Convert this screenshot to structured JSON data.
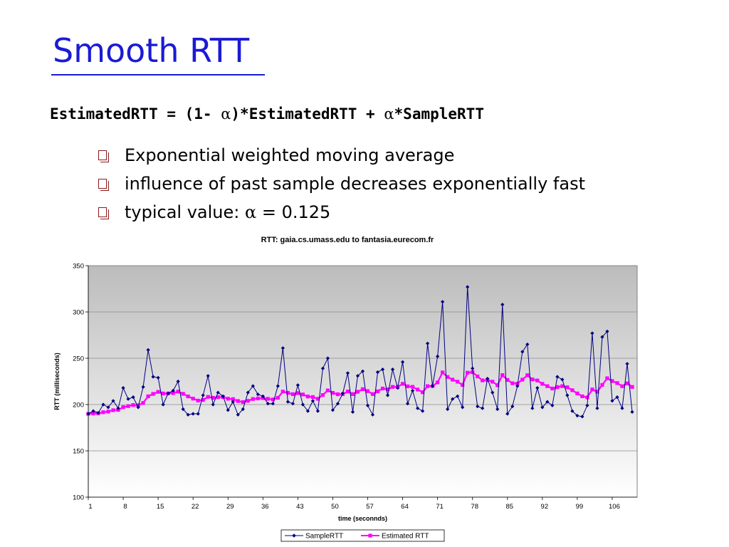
{
  "slide": {
    "title": "Smooth RTT",
    "formula_part1": "EstimatedRTT = (1- ",
    "formula_alpha1": "α",
    "formula_part2": ")*EstimatedRTT + ",
    "formula_alpha2": "α",
    "formula_part3": "*SampleRTT",
    "bullets": [
      "Exponential weighted moving average",
      "influence of past sample decreases exponentially fast"
    ],
    "bullet3_prefix": "typical value: ",
    "bullet3_alpha": "α",
    "bullet3_suffix": " = 0.125",
    "colors": {
      "title": "#1a1ad6",
      "bullet": "#8b1a1a"
    }
  },
  "chart_data": {
    "type": "line",
    "title": "RTT: gaia.cs.umass.edu to fantasia.eurecom.fr",
    "xlabel": "time (seconnds)",
    "ylabel": "RTT (milliseconds)",
    "ylim": [
      100,
      350
    ],
    "yticks": [
      100,
      150,
      200,
      250,
      300,
      350
    ],
    "xticks": [
      1,
      8,
      15,
      22,
      29,
      36,
      43,
      50,
      57,
      64,
      71,
      78,
      85,
      92,
      99,
      106
    ],
    "x_range": [
      1,
      111
    ],
    "grid": true,
    "legend_position": "bottom",
    "series": [
      {
        "name": "SampleRTT",
        "color": "#000080",
        "marker": "diamond",
        "values": [
          190,
          193,
          191,
          200,
          197,
          204,
          196,
          218,
          206,
          208,
          197,
          219,
          259,
          230,
          229,
          200,
          212,
          215,
          225,
          195,
          189,
          190,
          190,
          210,
          231,
          200,
          213,
          209,
          194,
          203,
          189,
          195,
          213,
          220,
          211,
          209,
          201,
          201,
          220,
          261,
          203,
          201,
          221,
          200,
          193,
          204,
          193,
          239,
          250,
          194,
          201,
          212,
          234,
          192,
          231,
          236,
          199,
          189,
          235,
          238,
          210,
          238,
          218,
          246,
          201,
          215,
          196,
          193,
          266,
          220,
          252,
          311,
          195,
          206,
          209,
          197,
          327,
          239,
          198,
          196,
          228,
          213,
          195,
          308,
          190,
          198,
          220,
          257,
          265,
          196,
          218,
          197,
          203,
          199,
          230,
          227,
          210,
          193,
          188,
          187,
          199,
          277,
          196,
          273,
          279,
          204,
          208,
          196,
          244,
          192
        ]
      },
      {
        "name": "Estimated RTT",
        "color": "#ff00ff",
        "marker": "square",
        "values": [
          190,
          190.4,
          190.5,
          191.7,
          192.4,
          193.9,
          194.2,
          197.2,
          198.3,
          199.5,
          199.2,
          201.7,
          208.9,
          211.5,
          213.7,
          212.0,
          212.0,
          212.4,
          214.0,
          211.6,
          208.8,
          206.4,
          204.3,
          205.0,
          208.3,
          207.3,
          208.0,
          208.1,
          206.3,
          205.9,
          203.8,
          202.7,
          204.0,
          206.0,
          206.6,
          207.0,
          206.2,
          205.5,
          207.3,
          214.0,
          212.6,
          211.2,
          212.4,
          210.9,
          208.7,
          208.1,
          206.2,
          210.3,
          215.3,
          212.6,
          211.1,
          211.2,
          214.1,
          211.3,
          213.8,
          216.6,
          214.5,
          211.3,
          214.3,
          217.3,
          216.4,
          219.1,
          219.0,
          222.4,
          219.7,
          219.1,
          216.2,
          213.3,
          219.9,
          219.9,
          223.9,
          234.7,
          229.8,
          226.9,
          224.7,
          221.2,
          234.4,
          235.0,
          230.4,
          226.1,
          226.4,
          224.7,
          220.9,
          231.8,
          226.6,
          223.0,
          222.6,
          226.9,
          231.7,
          227.2,
          226.0,
          222.4,
          219.9,
          217.3,
          218.9,
          219.9,
          218.7,
          215.5,
          212.0,
          208.9,
          207.7,
          216.3,
          213.8,
          221.2,
          228.4,
          225.4,
          223.2,
          219.8,
          222.9,
          219.0
        ]
      }
    ]
  }
}
